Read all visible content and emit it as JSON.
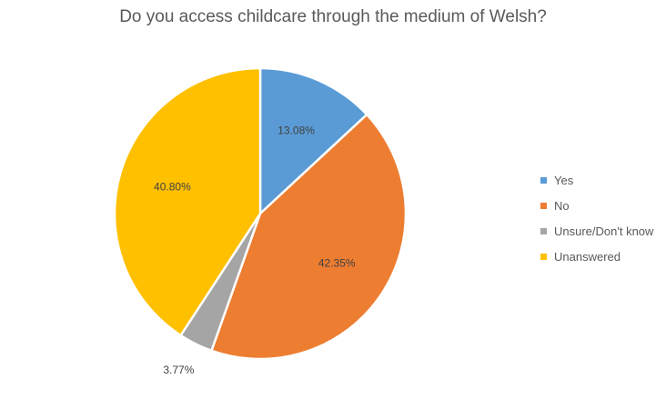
{
  "chart_data": {
    "type": "pie",
    "title": "Do you access childcare through the medium of Welsh?",
    "categories": [
      "Yes",
      "No",
      "Unsure/Don't know",
      "Unanswered"
    ],
    "values": [
      13.08,
      42.35,
      3.77,
      40.8
    ],
    "data_labels": [
      "13.08%",
      "42.35%",
      "3.77%",
      "40.80%"
    ],
    "colors": [
      "#5B9BD5",
      "#ED7D31",
      "#A5A5A5",
      "#FFC000"
    ],
    "legend_position": "right",
    "start_angle": "12 o'clock, clockwise"
  }
}
